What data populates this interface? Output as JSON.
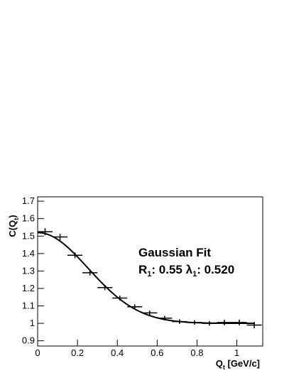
{
  "chart_data": {
    "type": "scatter",
    "x": [
      0.0375,
      0.1125,
      0.1875,
      0.2625,
      0.3375,
      0.4125,
      0.4875,
      0.5625,
      0.6375,
      0.7125,
      0.7875,
      0.8625,
      0.9375,
      1.0125,
      1.0875
    ],
    "xerr": [
      0.0375,
      0.0375,
      0.0375,
      0.0375,
      0.0375,
      0.0375,
      0.0375,
      0.0375,
      0.0375,
      0.0375,
      0.0375,
      0.0375,
      0.0375,
      0.0375,
      0.0375
    ],
    "values": [
      1.525,
      1.495,
      1.39,
      1.29,
      1.205,
      1.145,
      1.095,
      1.06,
      1.03,
      1.01,
      1.005,
      1.0,
      1.005,
      1.005,
      0.99
    ],
    "yerr": [
      0.012,
      0.01,
      0.008,
      0.008,
      0.007,
      0.006,
      0.006,
      0.005,
      0.005,
      0.005,
      0.005,
      0.005,
      0.008,
      0.008,
      0.01
    ],
    "color": "#000000",
    "xlim": [
      0,
      1.13
    ],
    "ylim": [
      0.87,
      1.725
    ],
    "xticks": [
      0,
      0.2,
      0.4,
      0.6,
      0.8,
      1
    ],
    "yticks": [
      0.9,
      1,
      1.1,
      1.2,
      1.3,
      1.4,
      1.5,
      1.6,
      1.7
    ],
    "xlabel": {
      "main": "Q",
      "sub": "t",
      "end": " [GeV/c]"
    },
    "ylabel": {
      "main": "C(Q",
      "sub": "t",
      "end": ")"
    },
    "fit": {
      "title": "Gaussian Fit",
      "R_name": "R",
      "lambda_name": "λ",
      "index": "1",
      "R": 0.55,
      "lambda": {
        "value": 0.52,
        "label": "0.520"
      }
    }
  }
}
